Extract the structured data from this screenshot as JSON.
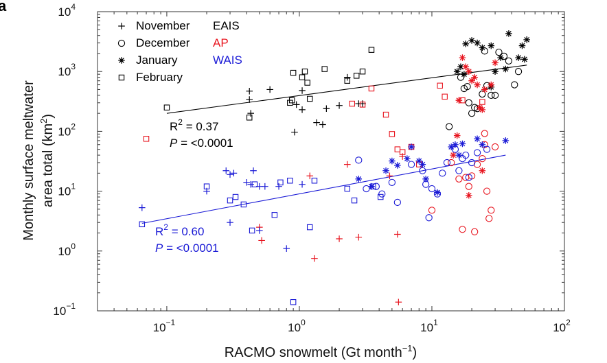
{
  "chart_data": {
    "type": "scatter",
    "panel_label": "a",
    "xlabel": {
      "main": "RACMO snowmelt (Gt month",
      "sup": "−1",
      "close": ")"
    },
    "ylabel": {
      "line1": "Monthly surface meltwater",
      "line2_main": "area total (km",
      "line2_sup": "2",
      "line2_close": ")"
    },
    "x_scale": "log",
    "y_scale": "log",
    "xlim": [
      0.03,
      100
    ],
    "ylim": [
      0.1,
      10000
    ],
    "x_ticks": [
      {
        "value": 0.1,
        "base": "10",
        "exp": "−1"
      },
      {
        "value": 1,
        "base": "10",
        "exp": "0"
      },
      {
        "value": 10,
        "base": "10",
        "exp": "1"
      },
      {
        "value": 100,
        "base": "10",
        "exp": "2"
      }
    ],
    "y_ticks": [
      {
        "value": 0.1,
        "base": "10",
        "exp": "−1"
      },
      {
        "value": 1,
        "base": "10",
        "exp": "0"
      },
      {
        "value": 10,
        "base": "10",
        "exp": "1"
      },
      {
        "value": 100,
        "base": "10",
        "exp": "2"
      },
      {
        "value": 1000,
        "base": "10",
        "exp": "3"
      },
      {
        "value": 10000,
        "base": "10",
        "exp": "4"
      }
    ],
    "legend_markers": [
      {
        "marker": "plus",
        "label": "November"
      },
      {
        "marker": "circle",
        "label": "December"
      },
      {
        "marker": "star",
        "label": "January"
      },
      {
        "marker": "square",
        "label": "February"
      }
    ],
    "legend_regions": [
      {
        "label": "EAIS",
        "color": "#000000"
      },
      {
        "label": "AP",
        "color": "#e8141e"
      },
      {
        "label": "WAIS",
        "color": "#1a1ad6"
      }
    ],
    "colors": {
      "EAIS": "#000000",
      "AP": "#e8141e",
      "WAIS": "#1a1ad6"
    },
    "fits": [
      {
        "name": "EAIS",
        "color": "#000000",
        "x": [
          0.1,
          52
        ],
        "y": [
          200,
          1280
        ]
      },
      {
        "name": "WAIS",
        "color": "#1a1ad6",
        "x": [
          0.065,
          36
        ],
        "y": [
          2.9,
          40
        ]
      }
    ],
    "stats": [
      {
        "name": "EAIS",
        "color": "#000000",
        "r2_label": "R",
        "r2_sup": "2",
        "r2_value": " = 0.37",
        "p_label": "P",
        "p_value": " = <0.0001"
      },
      {
        "name": "WAIS",
        "color": "#1a1ad6",
        "r2_label": "R",
        "r2_sup": "2",
        "r2_value": " = 0.60",
        "p_label": "P",
        "p_value": " = <0.0001"
      }
    ],
    "series": [
      {
        "name": "EAIS November",
        "region": "EAIS",
        "marker": "plus",
        "points": [
          [
            0.42,
            470
          ],
          [
            0.42,
            340
          ],
          [
            0.43,
            200
          ],
          [
            0.6,
            500
          ],
          [
            0.95,
            280
          ],
          [
            1.05,
            480
          ],
          [
            1.05,
            230
          ],
          [
            1.35,
            140
          ],
          [
            1.5,
            130
          ],
          [
            1.6,
            240
          ],
          [
            2.0,
            270
          ],
          [
            2.3,
            800
          ],
          [
            2.8,
            290
          ],
          [
            3.0,
            290
          ],
          [
            0.92,
            97
          ]
        ]
      },
      {
        "name": "EAIS December",
        "region": "EAIS",
        "marker": "circle",
        "points": [
          [
            13.5,
            120
          ],
          [
            16.5,
            800
          ],
          [
            17.5,
            520
          ],
          [
            18.5,
            560
          ],
          [
            19,
            300
          ],
          [
            20,
            200
          ],
          [
            21,
            250
          ],
          [
            22,
            240
          ],
          [
            24,
            420
          ],
          [
            26,
            580
          ],
          [
            28,
            400
          ],
          [
            30,
            400
          ],
          [
            32,
            2100
          ],
          [
            35,
            1800
          ],
          [
            38,
            1500
          ],
          [
            42,
            600
          ],
          [
            45,
            1000
          ],
          [
            25,
            2200
          ]
        ]
      },
      {
        "name": "EAIS January",
        "region": "EAIS",
        "marker": "star",
        "points": [
          [
            15.5,
            1000
          ],
          [
            16.5,
            1200
          ],
          [
            17.5,
            900
          ],
          [
            18,
            2900
          ],
          [
            20,
            3300
          ],
          [
            22,
            3000
          ],
          [
            24,
            2500
          ],
          [
            28,
            2700
          ],
          [
            30,
            1000
          ],
          [
            33,
            1700
          ],
          [
            36,
            1100
          ],
          [
            38,
            4300
          ],
          [
            45,
            1700
          ],
          [
            48,
            2700
          ],
          [
            52,
            3400
          ],
          [
            50,
            1600
          ],
          [
            28,
            550
          ]
        ]
      },
      {
        "name": "EAIS February",
        "region": "EAIS",
        "marker": "square",
        "points": [
          [
            0.1,
            250
          ],
          [
            0.42,
            170
          ],
          [
            0.85,
            300
          ],
          [
            0.88,
            330
          ],
          [
            0.9,
            950
          ],
          [
            1.05,
            800
          ],
          [
            1.1,
            1000
          ],
          [
            1.15,
            650
          ],
          [
            1.2,
            350
          ],
          [
            1.55,
            1100
          ],
          [
            2.3,
            700
          ],
          [
            2.7,
            850
          ],
          [
            3.0,
            1000
          ],
          [
            3.5,
            2300
          ]
        ]
      },
      {
        "name": "AP November",
        "region": "AP",
        "marker": "plus",
        "points": [
          [
            0.5,
            2.5
          ],
          [
            0.52,
            1.5
          ],
          [
            1.2,
            18
          ],
          [
            1.3,
            0.75
          ],
          [
            2.0,
            1.6
          ],
          [
            2.3,
            28
          ],
          [
            2.8,
            1.7
          ],
          [
            4.8,
            18
          ],
          [
            5.5,
            1.9
          ],
          [
            5.6,
            0.14
          ],
          [
            6.0,
            38
          ]
        ]
      },
      {
        "name": "AP December",
        "region": "AP",
        "marker": "circle",
        "points": [
          [
            10,
            4.8
          ],
          [
            14,
            30
          ],
          [
            16,
            16
          ],
          [
            17,
            2.3
          ],
          [
            18,
            17
          ],
          [
            19,
            12
          ],
          [
            20,
            18
          ],
          [
            21,
            2.1
          ],
          [
            22,
            28
          ],
          [
            24,
            35
          ],
          [
            26,
            10
          ],
          [
            27,
            3.5
          ],
          [
            28,
            4.8
          ],
          [
            30,
            55
          ],
          [
            25,
            92
          ],
          [
            25,
            60
          ]
        ]
      },
      {
        "name": "AP January",
        "region": "AP",
        "marker": "star",
        "points": [
          [
            16,
            330
          ],
          [
            17,
            1700
          ],
          [
            18,
            1200
          ],
          [
            19,
            1000
          ],
          [
            20,
            700
          ],
          [
            21,
            800
          ],
          [
            22,
            600
          ],
          [
            23,
            250
          ],
          [
            24,
            230
          ],
          [
            25,
            500
          ],
          [
            28,
            600
          ],
          [
            30,
            1400
          ],
          [
            15.5,
            85
          ],
          [
            19,
            8.5
          ],
          [
            24,
            22
          ],
          [
            14.5,
            40
          ]
        ]
      },
      {
        "name": "AP February",
        "region": "AP",
        "marker": "square",
        "points": [
          [
            0.07,
            75
          ],
          [
            2.5,
            290
          ],
          [
            3.0,
            280
          ],
          [
            3.5,
            520
          ],
          [
            4.5,
            190
          ],
          [
            5.0,
            90
          ],
          [
            5.5,
            50
          ],
          [
            6.0,
            45
          ],
          [
            7.0,
            55
          ],
          [
            8.0,
            28
          ],
          [
            11.5,
            580
          ],
          [
            12.5,
            380
          ],
          [
            17,
            330
          ],
          [
            24,
            310
          ]
        ]
      },
      {
        "name": "WAIS November",
        "region": "WAIS",
        "marker": "plus",
        "points": [
          [
            0.065,
            5.3
          ],
          [
            0.2,
            10
          ],
          [
            0.28,
            22
          ],
          [
            0.3,
            19
          ],
          [
            0.32,
            20
          ],
          [
            0.4,
            14
          ],
          [
            0.43,
            13
          ],
          [
            0.45,
            22
          ],
          [
            0.5,
            12
          ],
          [
            0.55,
            12
          ],
          [
            0.7,
            12
          ],
          [
            0.8,
            1.1
          ],
          [
            1.05,
            13
          ],
          [
            0.3,
            3
          ],
          [
            0.5,
            2.2
          ]
        ]
      },
      {
        "name": "WAIS December",
        "region": "WAIS",
        "marker": "circle",
        "points": [
          [
            2.8,
            33
          ],
          [
            3.2,
            11
          ],
          [
            3.8,
            12
          ],
          [
            4.2,
            9
          ],
          [
            5.0,
            14
          ],
          [
            5.5,
            6.5
          ],
          [
            7.0,
            28
          ],
          [
            8.5,
            22
          ],
          [
            9.0,
            13
          ],
          [
            9.5,
            3.6
          ],
          [
            10,
            11
          ],
          [
            11,
            9
          ],
          [
            12,
            20
          ],
          [
            13,
            30
          ],
          [
            15,
            50
          ],
          [
            16,
            22
          ],
          [
            17,
            35
          ],
          [
            18,
            40
          ],
          [
            19,
            17
          ],
          [
            20,
            30
          ],
          [
            22,
            44
          ],
          [
            26,
            50
          ]
        ]
      },
      {
        "name": "WAIS January",
        "region": "WAIS",
        "marker": "star",
        "points": [
          [
            2.8,
            16
          ],
          [
            3.5,
            12
          ],
          [
            4.5,
            22
          ],
          [
            5.0,
            32
          ],
          [
            5.5,
            27
          ],
          [
            6.5,
            35
          ],
          [
            7.0,
            55
          ],
          [
            8.0,
            32
          ],
          [
            8.5,
            28
          ],
          [
            9.0,
            16
          ],
          [
            11,
            9.5
          ],
          [
            14,
            55
          ],
          [
            15,
            60
          ],
          [
            16,
            40
          ],
          [
            17,
            62
          ],
          [
            22,
            75
          ],
          [
            24,
            60
          ],
          [
            36,
            70
          ]
        ]
      },
      {
        "name": "WAIS February",
        "region": "WAIS",
        "marker": "square",
        "points": [
          [
            0.065,
            2.8
          ],
          [
            0.2,
            12
          ],
          [
            0.3,
            7
          ],
          [
            0.33,
            8
          ],
          [
            0.38,
            6
          ],
          [
            0.44,
            2.2
          ],
          [
            0.46,
            13
          ],
          [
            0.65,
            4
          ],
          [
            0.72,
            14
          ],
          [
            0.85,
            15
          ],
          [
            0.9,
            0.14
          ],
          [
            1.2,
            2.5
          ],
          [
            1.3,
            15
          ],
          [
            2.3,
            11
          ],
          [
            2.6,
            7
          ],
          [
            3.6,
            12
          ],
          [
            4.1,
            8
          ]
        ]
      }
    ]
  }
}
